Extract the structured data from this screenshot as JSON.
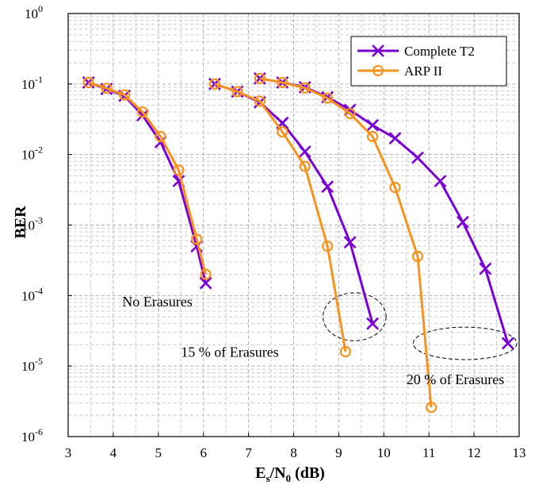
{
  "chart_data": {
    "type": "line",
    "title": "",
    "xlabel_parts": {
      "main1": "E",
      "sub1": "s",
      "sep": "/N",
      "sub2": "0",
      "rest": " (dB)"
    },
    "ylabel": "BER",
    "xlim": [
      3,
      13
    ],
    "ylim": [
      1e-06,
      1
    ],
    "yscale": "log",
    "grid": true,
    "legend_position": "top-right",
    "x_ticks": [
      "3",
      "4",
      "5",
      "6",
      "7",
      "8",
      "9",
      "10",
      "11",
      "12",
      "13"
    ],
    "y_ticks": [
      {
        "base": "10",
        "exp": "-6",
        "value": 1e-06
      },
      {
        "base": "10",
        "exp": "-5",
        "value": 1e-05
      },
      {
        "base": "10",
        "exp": "-4",
        "value": 0.0001
      },
      {
        "base": "10",
        "exp": "-3",
        "value": 0.001
      },
      {
        "base": "10",
        "exp": "-2",
        "value": 0.01
      },
      {
        "base": "10",
        "exp": "-1",
        "value": 0.1
      },
      {
        "base": "10",
        "exp": "0",
        "value": 1
      }
    ],
    "series": [
      {
        "name": "Complete T2",
        "color": "#7b00d4",
        "marker": "x",
        "segments": [
          {
            "x": [
              3.45,
              3.85,
              4.25,
              4.65,
              5.05,
              5.45,
              5.85,
              6.05
            ],
            "y": [
              0.105,
              0.085,
              0.068,
              0.036,
              0.015,
              0.0042,
              0.0005,
              0.00015
            ]
          },
          {
            "x": [
              6.25,
              6.75,
              7.25,
              7.75
            ],
            "y": [
              0.1,
              0.078,
              0.055,
              0.028
            ]
          },
          {
            "x": [
              7.75,
              8.25,
              8.75,
              9.25,
              9.75
            ],
            "y": [
              0.028,
              0.011,
              0.0035,
              0.00057,
              4e-05
            ]
          },
          {
            "x": [
              7.25,
              7.75,
              8.25,
              8.75,
              9.25,
              9.75,
              10.25,
              10.75,
              11.25,
              11.75,
              12.25,
              12.75
            ],
            "y": [
              0.12,
              0.105,
              0.09,
              0.065,
              0.043,
              0.026,
              0.017,
              0.009,
              0.0042,
              0.0011,
              0.00024,
              2.1e-05
            ]
          }
        ]
      },
      {
        "name": "ARP II",
        "color": "#f7931e",
        "marker": "o",
        "segments": [
          {
            "x": [
              3.45,
              3.85,
              4.25,
              4.65,
              5.05,
              5.45,
              5.85,
              6.05
            ],
            "y": [
              0.105,
              0.087,
              0.07,
              0.04,
              0.018,
              0.006,
              0.00063,
              0.0002
            ]
          },
          {
            "x": [
              6.25,
              6.75,
              7.25,
              7.75,
              8.25,
              8.75,
              9.15
            ],
            "y": [
              0.1,
              0.078,
              0.057,
              0.021,
              0.0068,
              0.0005,
              1.6e-05
            ]
          },
          {
            "x": [
              7.25,
              7.75,
              8.25,
              8.75,
              9.25,
              9.75,
              10.25,
              10.75,
              11.05
            ],
            "y": [
              0.12,
              0.105,
              0.088,
              0.063,
              0.038,
              0.018,
              0.0034,
              0.00036,
              2.6e-06
            ]
          }
        ]
      }
    ],
    "annotations": [
      {
        "text": "No Erasures",
        "x": 4.2,
        "y": 7e-05
      },
      {
        "text": "15 % of Erasures",
        "x": 5.5,
        "y": 1.35e-05
      },
      {
        "text": "20 % of Erasures",
        "x": 10.5,
        "y": 5.5e-06
      }
    ],
    "ellipses": [
      {
        "cx": 9.35,
        "cy": 5e-05,
        "rx_data": 0.7,
        "decades_half": 0.34
      },
      {
        "cx": 11.8,
        "cy": 2.1e-05,
        "rx_data": 1.15,
        "decades_half": 0.23
      }
    ]
  }
}
